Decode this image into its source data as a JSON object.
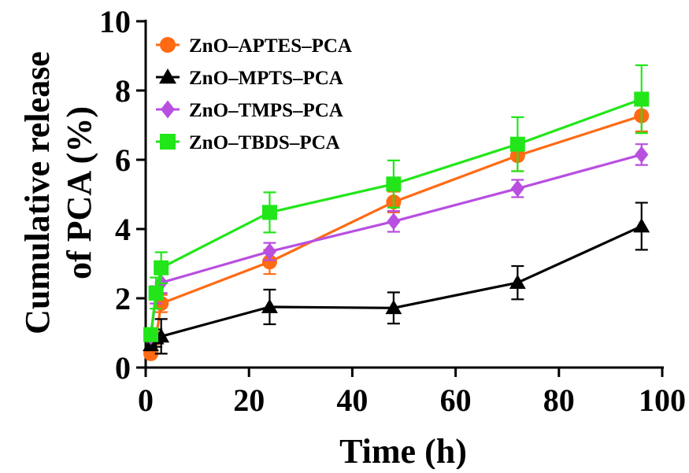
{
  "chart_data": {
    "type": "line",
    "title": "",
    "xlabel": "Time (h)",
    "ylabel_lines": [
      "Cumulative release",
      "of PCA (%)"
    ],
    "xlim": [
      0,
      100
    ],
    "ylim": [
      0,
      10
    ],
    "xticks": [
      0,
      20,
      40,
      60,
      80,
      100
    ],
    "yticks": [
      0,
      2,
      4,
      6,
      8,
      10
    ],
    "grid": false,
    "legend_position": "top-left",
    "series": [
      {
        "name": "ZnO–APTES–PCA",
        "color": "#ff6a13",
        "marker": "circle",
        "x": [
          1,
          2,
          3,
          24,
          48,
          72,
          96
        ],
        "y": [
          0.4,
          0.85,
          1.85,
          3.05,
          4.78,
          6.12,
          7.27
        ],
        "err": [
          0.05,
          0.1,
          0.25,
          0.35,
          0.3,
          0.45,
          0.45
        ]
      },
      {
        "name": "ZnO–MPTS–PCA",
        "color": "#000000",
        "marker": "triangle",
        "x": [
          1,
          2,
          3,
          24,
          48,
          72,
          96
        ],
        "y": [
          0.65,
          0.85,
          0.9,
          1.75,
          1.72,
          2.45,
          4.08
        ],
        "err": [
          0.1,
          0.25,
          0.5,
          0.5,
          0.45,
          0.48,
          0.68
        ]
      },
      {
        "name": "ZnO–TMPS–PCA",
        "color": "#b84fe0",
        "marker": "diamond",
        "x": [
          1,
          2,
          3,
          24,
          48,
          72,
          96
        ],
        "y": [
          0.9,
          2.1,
          2.45,
          3.35,
          4.22,
          5.17,
          6.15
        ],
        "err": [
          0.1,
          0.25,
          0.3,
          0.25,
          0.3,
          0.25,
          0.3
        ]
      },
      {
        "name": "ZnO–TBDS–PCA",
        "color": "#22e619",
        "marker": "square",
        "x": [
          1,
          2,
          3,
          24,
          48,
          72,
          96
        ],
        "y": [
          0.95,
          2.15,
          2.88,
          4.48,
          5.3,
          6.45,
          7.75
        ],
        "err": [
          0.15,
          0.45,
          0.45,
          0.58,
          0.68,
          0.78,
          0.98
        ]
      }
    ]
  }
}
